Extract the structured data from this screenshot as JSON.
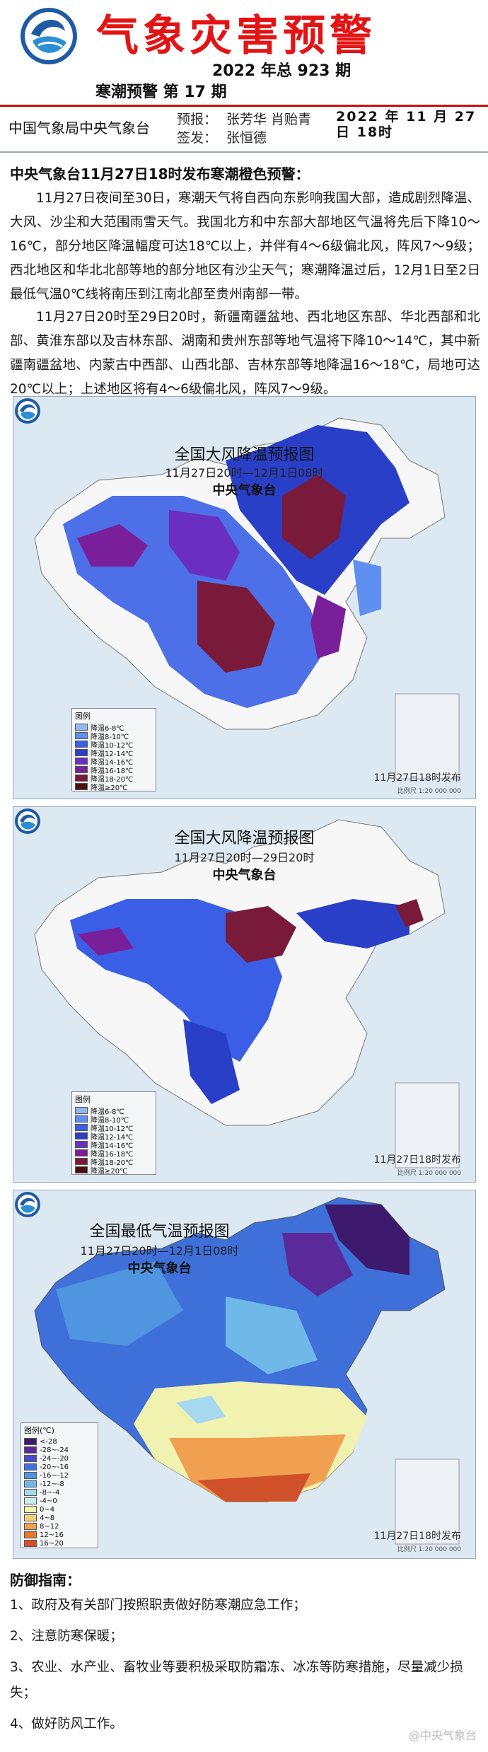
{
  "header": {
    "title": "气象灾害预警",
    "issue": "2022 年总 923 期",
    "subtitle": "寒潮预警 第 17 期",
    "org": "中国气象局中央气象台",
    "forecast_label": "预报：",
    "forecasters": "张芳华 肖贻青",
    "sign_label": "签发：",
    "signer": "张恒德",
    "issue_date": "2022 年 11 月 27 日 18时"
  },
  "body": {
    "lead": "中央气象台11月27日18时发布寒潮橙色预警：",
    "para1": "11月27日夜间至30日，寒潮天气将自西向东影响我国大部，造成剧烈降温、大风、沙尘和大范围雨雪天气。我国北方和中东部大部地区气温将先后下降10～16℃，部分地区降温幅度可达18℃以上，并伴有4～6级偏北风，阵风7～9级；西北地区和华北北部等地的部分地区有沙尘天气；寒潮降温过后，12月1日至2日最低气温0℃线将南压到江南北部至贵州南部一带。",
    "para2": "11月27日20时至29日20时，新疆南疆盆地、西北地区东部、华北西部和北部、黄淮东部以及吉林东部、湖南和贵州东部等地气温将下降10～14℃，其中新疆南疆盆地、内蒙古中西部、山西北部、吉林东部等地降温16～18℃，局地可达20℃以上；上述地区将有4～6级偏北风，阵风7～9级。"
  },
  "maps": [
    {
      "title": "全国大风降温预报图",
      "range": "11月27日20时—12月1日08时",
      "agency": "中央气象台",
      "legend_title": "图例",
      "legend": [
        "降温6-8℃",
        "降温8-10℃",
        "降温10-12℃",
        "降温12-14℃",
        "降温14-16℃",
        "降温16-18℃",
        "降温18-20℃",
        "降温≥20℃"
      ],
      "issued": "11月27日18时发布",
      "scale": "比例尺 1:20 000 000"
    },
    {
      "title": "全国大风降温预报图",
      "range": "11月27日20时—29日20时",
      "agency": "中央气象台",
      "legend_title": "图例",
      "legend": [
        "降温6-8℃",
        "降温8-10℃",
        "降温10-12℃",
        "降温12-14℃",
        "降温14-16℃",
        "降温16-18℃",
        "降温18-20℃",
        "降温≥20℃"
      ],
      "issued": "11月27日18时发布",
      "scale": "比例尺 1:20 000 000"
    },
    {
      "title": "全国最低气温预报图",
      "range": "11月27日20时—12月1日08时",
      "agency": "中央气象台",
      "legend_title": "图例(℃)",
      "legend": [
        "<-28",
        "-28~-24",
        "-24~-20",
        "-20~-16",
        "-16~-12",
        "-12~-8",
        "-8~-4",
        "-4~0",
        "0~4",
        "4~8",
        "8~12",
        "12~16",
        "16~20"
      ],
      "issued": "11月27日18时发布",
      "scale": "比例尺 1:20 000 000"
    }
  ],
  "colors": {
    "title_red": "#e41414",
    "cool_scale": [
      "#8fb8f0",
      "#5f8ff0",
      "#3a5fe6",
      "#2a3fc8",
      "#6a2fc0",
      "#7a1f9a",
      "#7a1a3a",
      "#4a1010"
    ],
    "temp_scale": [
      "#3d1a6e",
      "#5a2a9a",
      "#4a4acb",
      "#3f6fd8",
      "#4f95e0",
      "#6fb8e8",
      "#a6d8ee",
      "#cdeaf0",
      "#f2f2b0",
      "#f4cf7a",
      "#f0a050",
      "#e67830",
      "#d0502a"
    ]
  },
  "guide": {
    "title": "防御指南：",
    "items": [
      "1、政府及有关部门按照职责做好防寒潮应急工作；",
      "2、注意防寒保暖；",
      "3、农业、水产业、畜牧业等要积极采取防霜冻、冰冻等防寒措施，尽量减少损失；",
      "4、做好防风工作。"
    ]
  },
  "watermark": "@中央气象台"
}
